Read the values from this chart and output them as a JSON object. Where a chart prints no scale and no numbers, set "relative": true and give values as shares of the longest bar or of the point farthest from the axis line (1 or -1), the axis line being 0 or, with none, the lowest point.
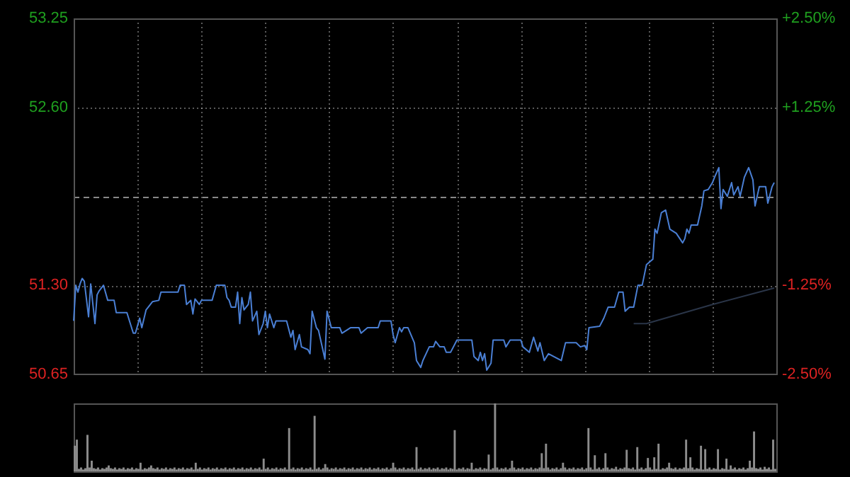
{
  "chart_data": [
    {
      "type": "line",
      "categories": [
        null,
        null,
        null,
        null,
        null,
        null,
        null,
        null,
        null,
        null,
        null,
        null,
        null,
        null,
        null,
        null,
        null,
        null,
        null,
        null,
        null,
        null,
        null,
        null,
        null,
        null,
        null,
        null,
        null,
        null,
        null,
        null,
        null,
        null,
        null,
        null,
        null,
        null,
        null,
        null,
        null,
        null,
        null,
        null,
        null,
        null,
        null,
        null,
        null,
        null,
        null,
        null,
        null,
        null,
        null,
        null,
        null,
        null,
        null,
        null,
        null,
        null,
        null,
        null,
        null,
        null,
        null,
        null,
        null,
        null,
        null,
        null,
        null,
        null,
        null,
        null,
        null,
        null,
        null,
        null,
        null,
        null,
        null,
        null,
        null,
        null,
        null,
        null,
        null,
        null,
        null,
        null,
        null,
        null,
        null,
        null,
        null,
        null,
        null,
        null,
        null,
        null,
        null,
        null,
        null,
        null,
        null,
        null,
        null,
        null,
        null,
        null,
        null,
        null,
        null,
        null,
        null,
        null,
        null,
        null,
        null,
        null,
        null,
        null,
        null,
        null,
        null,
        null,
        null,
        null,
        null,
        null,
        null,
        null,
        null,
        null,
        null,
        null,
        null,
        null,
        null,
        null,
        null,
        null,
        null,
        null,
        null,
        null,
        null,
        null,
        null,
        null,
        null,
        null,
        null,
        null,
        null,
        null,
        null,
        null,
        null,
        null,
        null,
        null,
        null,
        null,
        null,
        null,
        null,
        null,
        null,
        null,
        null,
        null,
        null,
        null,
        null,
        null,
        null,
        null,
        null,
        null,
        null,
        null,
        null,
        null,
        null,
        null,
        null,
        null,
        null,
        null,
        null,
        null,
        null,
        null,
        null,
        null,
        null,
        null,
        null,
        null,
        null,
        null,
        null,
        null,
        null,
        null,
        null,
        null,
        null,
        null,
        null,
        null,
        null,
        null,
        null,
        null,
        null,
        null,
        null,
        null,
        null,
        null,
        null,
        null,
        null,
        null,
        null,
        null,
        null,
        null,
        null,
        null,
        null,
        null,
        null,
        null,
        null,
        null,
        null,
        null,
        null,
        null,
        null,
        null,
        null,
        null,
        null,
        null,
        null,
        null,
        null,
        null,
        null,
        null,
        null,
        null,
        null,
        null,
        null,
        null,
        null,
        null,
        null,
        null,
        null,
        null,
        null,
        null,
        null,
        null,
        null,
        null,
        null,
        null,
        null,
        null,
        null,
        null,
        null,
        null,
        null,
        null,
        null,
        null,
        null,
        null,
        null,
        null,
        null,
        null,
        null,
        null,
        null,
        null,
        null,
        null,
        null,
        null,
        null,
        null,
        null,
        null,
        null,
        null,
        null,
        null,
        null,
        null,
        null,
        null,
        null,
        null,
        null,
        null,
        null,
        null,
        null,
        null,
        null,
        null,
        null,
        null,
        null,
        null,
        null,
        null,
        null,
        null,
        null
      ],
      "ylim": [
        50.65,
        53.25
      ],
      "yticks": [
        50.65,
        {
          "value": 51.3,
          "label": "51.30"
        },
        {
          "value": 52.6,
          "label": "52.60"
        },
        53.25
      ],
      "y2lim": [
        -2.5,
        2.5
      ],
      "y2ticks": [
        {
          "value": -2.5,
          "label": "-2.50%"
        },
        {
          "value": -1.25,
          "label": "-1.25%"
        },
        {
          "value": 1.25,
          "label": "+1.25%"
        },
        {
          "value": 2.5,
          "label": "+2.50%"
        }
      ],
      "tick_labels": "y",
      "grid": true,
      "ref_lines": [
        {
          "axis": "y",
          "value": 51.95,
          "color": "#888888",
          "line_style": "dashed"
        }
      ],
      "series": [
        {
          "color": "#4a7fd4",
          "values": [
            51.04,
            51.3,
            51.25,
            51.31,
            51.35,
            51.33,
            null,
            51.07,
            51.31,
            null,
            51.02,
            51.23,
            51.26,
            null,
            51.3,
            null,
            51.19,
            null,
            null,
            51.19,
            51.1,
            null,
            null,
            null,
            null,
            51.1,
            null,
            null,
            50.95,
            50.95,
            null,
            51.06,
            50.99,
            null,
            51.12,
            51.14,
            null,
            51.18,
            null,
            null,
            51.19,
            51.25,
            null,
            null,
            null,
            null,
            null,
            null,
            null,
            51.25,
            51.3,
            null,
            51.3,
            51.16,
            null,
            51.19,
            51.09,
            51.2,
            null,
            51.16,
            51.19,
            null,
            null,
            null,
            null,
            51.19,
            null,
            51.3,
            null,
            null,
            null,
            51.3,
            51.21,
            51.19,
            51.14,
            null,
            51.14,
            51.25,
            51.02,
            51.21,
            51.12,
            null,
            51.16,
            51.25,
            51.04,
            null,
            51.11,
            50.94,
            null,
            51.02,
            51.11,
            50.99,
            51.09,
            null,
            50.99,
            51.04,
            null,
            null,
            null,
            null,
            51.04,
            null,
            50.92,
            50.97,
            50.83,
            null,
            50.94,
            50.85,
            null,
            null,
            50.83,
            50.8,
            51.11,
            null,
            50.99,
            50.97,
            null,
            null,
            50.76,
            51.11,
            null,
            50.99,
            null,
            null,
            null,
            50.99,
            50.95,
            null,
            null,
            null,
            50.99,
            null,
            null,
            null,
            50.99,
            50.95,
            null,
            null,
            50.99,
            null,
            null,
            null,
            null,
            50.99,
            51.04,
            null,
            null,
            null,
            null,
            51.04,
            50.94,
            50.88,
            null,
            50.99,
            50.96,
            50.99,
            null,
            50.99,
            null,
            null,
            50.88,
            50.75,
            null,
            50.7,
            50.75,
            null,
            null,
            50.85,
            null,
            50.85,
            50.89,
            null,
            50.85,
            null,
            50.85,
            50.81,
            null,
            50.81,
            null,
            null,
            50.9,
            null,
            null,
            null,
            null,
            null,
            null,
            50.9,
            50.78,
            null,
            50.75,
            50.81,
            50.75,
            50.8,
            50.68,
            null,
            50.73,
            50.9,
            null,
            null,
            null,
            null,
            50.9,
            50.85,
            null,
            50.9,
            null,
            null,
            null,
            null,
            50.9,
            50.85,
            null,
            null,
            50.81,
            null,
            50.92,
            null,
            50.82,
            50.88,
            null,
            50.75,
            null,
            50.8,
            null,
            null,
            null,
            null,
            null,
            50.75,
            null,
            50.88,
            null,
            null,
            null,
            null,
            50.88,
            null,
            50.85,
            null,
            50.86,
            50.83,
            50.99,
            null,
            null,
            null,
            null,
            51.0,
            null,
            51.06,
            null,
            51.14,
            null,
            null,
            51.14,
            null,
            51.25,
            null,
            51.25,
            51.11,
            null,
            51.14,
            null,
            51.14,
            null,
            51.3,
            null,
            51.3,
            null,
            51.45,
            null,
            null,
            51.49,
            51.71,
            51.68,
            null,
            51.83,
            null,
            51.85,
            null,
            51.71,
            null,
            null,
            51.68,
            null,
            null,
            51.61,
            51.64,
            51.71,
            51.68,
            51.74,
            null,
            null,
            51.74,
            null,
            51.88,
            51.99,
            null,
            52.0,
            null,
            52.05,
            52.09,
            null,
            52.16,
            51.86,
            52.0,
            null,
            51.95,
            null,
            52.05,
            51.96,
            null,
            52.02,
            51.95,
            null,
            52.09,
            null,
            52.16,
            null,
            52.07,
            51.88,
            null,
            52.02,
            null,
            52.02,
            52.02,
            51.9,
            null,
            52.02,
            52.05,
            null
          ]
        },
        {
          "color": "#2a3548",
          "values": [
            null,
            null,
            null,
            null,
            null,
            null,
            null,
            null,
            null,
            null,
            null,
            null,
            null,
            null,
            null,
            null,
            null,
            null,
            null,
            null,
            null,
            null,
            null,
            null,
            null,
            null,
            null,
            null,
            null,
            null,
            null,
            null,
            null,
            null,
            null,
            null,
            null,
            null,
            null,
            null,
            null,
            null,
            null,
            null,
            null,
            null,
            null,
            null,
            null,
            null,
            null,
            null,
            null,
            null,
            null,
            null,
            null,
            null,
            null,
            null,
            null,
            null,
            null,
            null,
            null,
            null,
            null,
            null,
            null,
            null,
            null,
            null,
            null,
            null,
            null,
            null,
            null,
            null,
            null,
            null,
            null,
            null,
            null,
            null,
            null,
            null,
            null,
            null,
            null,
            null,
            null,
            null,
            null,
            null,
            null,
            null,
            null,
            null,
            null,
            null,
            null,
            null,
            null,
            null,
            null,
            null,
            null,
            null,
            null,
            null,
            null,
            null,
            null,
            null,
            null,
            null,
            null,
            null,
            null,
            null,
            null,
            null,
            null,
            null,
            null,
            null,
            null,
            null,
            null,
            null,
            null,
            null,
            null,
            null,
            null,
            null,
            null,
            null,
            null,
            null,
            null,
            null,
            null,
            null,
            null,
            null,
            null,
            null,
            null,
            null,
            null,
            null,
            null,
            null,
            null,
            null,
            null,
            null,
            null,
            null,
            null,
            null,
            null,
            null,
            null,
            null,
            null,
            null,
            null,
            null,
            null,
            null,
            null,
            null,
            null,
            null,
            null,
            null,
            null,
            null,
            null,
            null,
            null,
            null,
            null,
            null,
            null,
            null,
            null,
            null,
            null,
            null,
            null,
            null,
            null,
            null,
            null,
            null,
            null,
            null,
            null,
            null,
            null,
            null,
            null,
            null,
            null,
            null,
            null,
            null,
            null,
            null,
            null,
            null,
            null,
            null,
            null,
            null,
            null,
            null,
            null,
            null,
            null,
            null,
            null,
            null,
            null,
            null,
            null,
            null,
            null,
            null,
            null,
            null,
            null,
            null,
            null,
            null,
            null,
            null,
            null,
            null,
            null,
            null,
            null,
            null,
            null,
            null,
            null,
            null,
            null,
            null,
            null,
            null,
            null,
            null,
            null,
            null,
            null,
            null,
            null,
            null,
            null,
            51.02,
            null,
            null,
            null,
            null,
            null,
            51.02,
            null,
            null,
            null,
            null,
            null,
            null,
            null,
            null,
            null,
            null,
            null,
            null,
            null,
            null,
            null,
            null,
            null,
            null,
            null,
            null,
            null,
            null,
            null,
            null,
            null,
            null,
            null,
            null,
            null,
            null,
            51.16,
            null,
            null,
            null,
            null,
            null,
            null,
            null,
            null,
            null,
            null,
            null,
            null,
            null,
            null,
            null,
            null,
            null,
            null,
            null,
            null,
            null,
            null,
            null,
            null,
            null,
            null,
            null,
            null,
            51.28,
            null
          ]
        }
      ]
    },
    {
      "type": "bar",
      "relative": true,
      "tick_labels": false,
      "categories": [
        null,
        null,
        null,
        null,
        null,
        null,
        null,
        null,
        null,
        null,
        null,
        null,
        null,
        null,
        null,
        null,
        null,
        null,
        null,
        null,
        null,
        null,
        null,
        null,
        null,
        null,
        null,
        null,
        null,
        null,
        null,
        null,
        null,
        null,
        null,
        null,
        null,
        null,
        null,
        null,
        null,
        null,
        null,
        null,
        null,
        null,
        null,
        null,
        null,
        null,
        null,
        null,
        null,
        null,
        null,
        null,
        null,
        null,
        null,
        null,
        null,
        null,
        null,
        null,
        null,
        null,
        null,
        null,
        null,
        null,
        null,
        null,
        null,
        null,
        null,
        null,
        null,
        null,
        null,
        null,
        null,
        null,
        null,
        null,
        null,
        null,
        null,
        null,
        null,
        null,
        null,
        null,
        null,
        null,
        null,
        null,
        null,
        null,
        null,
        null,
        null,
        null,
        null,
        null,
        null,
        null,
        null,
        null,
        null,
        null,
        null,
        null,
        null,
        null,
        null,
        null,
        null,
        null,
        null,
        null,
        null,
        null,
        null,
        null,
        null,
        null,
        null,
        null,
        null,
        null,
        null,
        null,
        null,
        null,
        null,
        null,
        null,
        null,
        null,
        null,
        null,
        null,
        null,
        null,
        null,
        null,
        null,
        null,
        null,
        null,
        null,
        null,
        null,
        null,
        null,
        null,
        null,
        null,
        null,
        null,
        null,
        null,
        null,
        null,
        null,
        null,
        null,
        null,
        null,
        null,
        null,
        null,
        null,
        null,
        null,
        null,
        null,
        null,
        null,
        null,
        null,
        null,
        null,
        null,
        null,
        null,
        null,
        null,
        null,
        null,
        null,
        null,
        null,
        null,
        null,
        null,
        null,
        null,
        null,
        null,
        null,
        null,
        null,
        null,
        null,
        null,
        null,
        null,
        null,
        null,
        null,
        null,
        null,
        null,
        null,
        null,
        null,
        null,
        null,
        null,
        null,
        null,
        null,
        null,
        null,
        null,
        null,
        null,
        null,
        null,
        null,
        null,
        null,
        null,
        null,
        null,
        null,
        null,
        null,
        null,
        null,
        null,
        null,
        null,
        null,
        null,
        null,
        null,
        null,
        null,
        null,
        null,
        null,
        null,
        null,
        null,
        null,
        null,
        null,
        null,
        null,
        null,
        null,
        null,
        null,
        null,
        null,
        null,
        null,
        null,
        null,
        null,
        null,
        null,
        null,
        null,
        null,
        null,
        null,
        null,
        null,
        null,
        null,
        null,
        null,
        null,
        null,
        null,
        null,
        null,
        null,
        null,
        null,
        null,
        null,
        null,
        null,
        null,
        null,
        null,
        null,
        null,
        null,
        null,
        null,
        null,
        null,
        null,
        null,
        null,
        null,
        null,
        null,
        null,
        null,
        null,
        null,
        null,
        null,
        null,
        null,
        null,
        null,
        null,
        null,
        null,
        null,
        null,
        null,
        null,
        null
      ],
      "series": [
        {
          "color": "#8c8c8c",
          "values": [
            0.37,
            0.46,
            0.03,
            0.05,
            0.02,
            0.04,
            0.53,
            0.05,
            0.15,
            0.04,
            0.03,
            0.05,
            0.02,
            0.04,
            0.03,
            0.05,
            0.08,
            0.04,
            0.03,
            0.05,
            0.02,
            0.04,
            0.03,
            0.05,
            0.02,
            0.04,
            0.03,
            0.05,
            0.02,
            0.04,
            0.03,
            0.12,
            0.02,
            0.04,
            0.03,
            0.05,
            0.08,
            0.04,
            0.03,
            0.05,
            0.02,
            0.04,
            0.03,
            0.05,
            0.02,
            0.04,
            0.03,
            0.05,
            0.02,
            0.04,
            0.03,
            0.05,
            0.02,
            0.04,
            0.03,
            0.05,
            0.02,
            0.12,
            0.03,
            0.05,
            0.02,
            0.04,
            0.03,
            0.05,
            0.02,
            0.04,
            0.03,
            0.05,
            0.02,
            0.04,
            0.03,
            0.05,
            0.02,
            0.04,
            0.03,
            0.05,
            0.02,
            0.04,
            0.03,
            0.05,
            0.02,
            0.04,
            0.03,
            0.05,
            0.02,
            0.04,
            0.03,
            0.05,
            0.02,
            0.18,
            0.03,
            0.05,
            0.02,
            0.04,
            0.03,
            0.05,
            0.02,
            0.04,
            0.03,
            0.05,
            0.02,
            0.63,
            0.03,
            0.05,
            0.02,
            0.04,
            0.03,
            0.05,
            0.02,
            0.04,
            0.03,
            0.05,
            0.02,
            0.81,
            0.03,
            0.05,
            0.02,
            0.04,
            0.1,
            0.05,
            0.02,
            0.04,
            0.03,
            0.05,
            0.02,
            0.04,
            0.03,
            0.05,
            0.02,
            0.04,
            0.03,
            0.05,
            0.02,
            0.04,
            0.03,
            0.05,
            0.02,
            0.04,
            0.03,
            0.05,
            0.02,
            0.04,
            0.03,
            0.05,
            0.02,
            0.04,
            0.03,
            0.05,
            0.02,
            0.04,
            0.12,
            0.05,
            0.02,
            0.04,
            0.03,
            0.05,
            0.02,
            0.04,
            0.03,
            0.05,
            0.02,
            0.35,
            0.03,
            0.05,
            0.02,
            0.04,
            0.03,
            0.05,
            0.02,
            0.04,
            0.03,
            0.05,
            0.02,
            0.04,
            0.03,
            0.05,
            0.02,
            0.04,
            0.03,
            0.6,
            0.02,
            0.04,
            0.03,
            0.05,
            0.02,
            0.04,
            0.03,
            0.12,
            0.02,
            0.04,
            0.03,
            0.05,
            0.02,
            0.04,
            0.03,
            0.24,
            0.02,
            0.04,
            1,
            0.05,
            0.02,
            0.04,
            0.03,
            0.05,
            0.02,
            0.04,
            0.15,
            0.05,
            0.02,
            0.04,
            0.03,
            0.05,
            0.02,
            0.04,
            0.03,
            0.05,
            0.02,
            0.04,
            0.03,
            0.05,
            0.26,
            0.04,
            0.4,
            0.05,
            0.02,
            0.04,
            0.03,
            0.05,
            0.02,
            0.04,
            0.12,
            0.05,
            0.02,
            0.04,
            0.03,
            0.05,
            0.02,
            0.04,
            0.03,
            0.05,
            0.02,
            0.04,
            0.63,
            0.05,
            0.02,
            0.23,
            0.03,
            0.05,
            0.02,
            0.04,
            0.26,
            0.05,
            0.02,
            0.04,
            0.03,
            0.06,
            0.02,
            0.04,
            0.03,
            0.05,
            0.31,
            0.04,
            0.03,
            0.05,
            0.02,
            0.35,
            0.03,
            0.05,
            0.02,
            0.04,
            0.19,
            0.05,
            0.02,
            0.2,
            0.03,
            0.4,
            0.02,
            0.04,
            0.03,
            0.05,
            0.12,
            0.04,
            0.03,
            0.05,
            0.02,
            0.04,
            0.03,
            0.05,
            0.46,
            0.04,
            0.2,
            0.05,
            0.02,
            0.04,
            0.03,
            0.37,
            0.02,
            0.32,
            0.03,
            0.05,
            0.02,
            0.04,
            0.03,
            0.32,
            0.02,
            0.04,
            0.03,
            0.18,
            0.02,
            0.08,
            0.03,
            0.05,
            0.02,
            0.04,
            0.03,
            0.05,
            0.02,
            0.04,
            0.15,
            0.05,
            0.58,
            0.04,
            0.03,
            0.05,
            0.02,
            0.06,
            0.03,
            0.05,
            0.02,
            0.46,
            0.03
          ]
        }
      ]
    }
  ]
}
